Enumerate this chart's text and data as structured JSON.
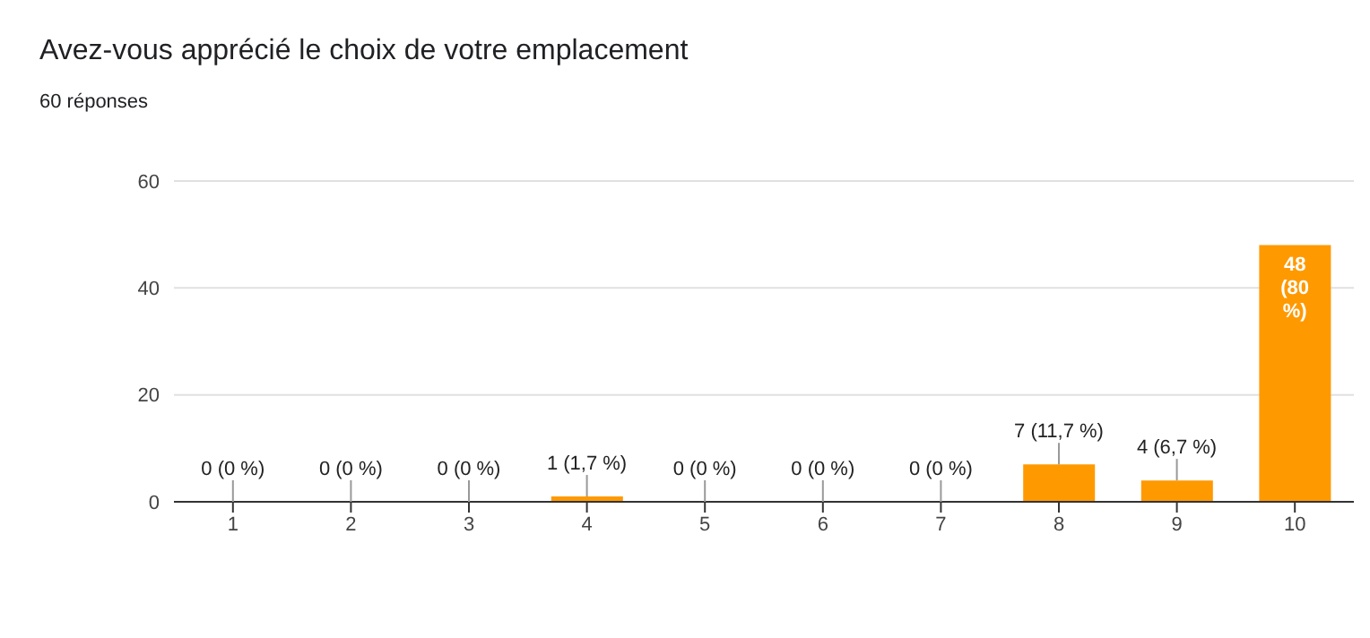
{
  "chart_data": {
    "type": "bar",
    "title": "Avez-vous apprécié le choix de votre emplacement",
    "subtitle": "60 réponses",
    "categories": [
      "1",
      "2",
      "3",
      "4",
      "5",
      "6",
      "7",
      "8",
      "9",
      "10"
    ],
    "values": [
      0,
      0,
      0,
      1,
      0,
      0,
      0,
      7,
      4,
      48
    ],
    "color": "#ff9900",
    "value_labels": [
      "0 (0 %)",
      "0 (0 %)",
      "0 (0 %)",
      "1 (1,7 %)",
      "0 (0 %)",
      "0 (0 %)",
      "0 (0 %)",
      "7 (11,7 %)",
      "4 (6,7 %)",
      "48 (80 %)"
    ],
    "ylim": [
      0,
      60
    ],
    "yticks": [
      0,
      20,
      40,
      60
    ],
    "grid": "y"
  }
}
